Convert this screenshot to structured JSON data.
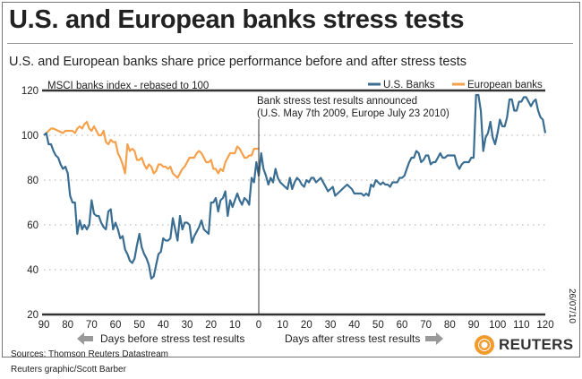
{
  "title": "U.S. and European banks stress tests",
  "subtitle": "U.S. and European banks share price performance before and after stress tests",
  "sources": "Sources: Thomson Reuters Datastream",
  "credit": "Reuters graphic/Scott Barber",
  "date_stamp": "26/07/10",
  "logo_text": "REUTERS",
  "before_label": "Days before stress test results",
  "after_label": "Days after stress test results",
  "colors": {
    "us": "#3a6d92",
    "europe": "#f5a04a",
    "grid": "#aaaaaa",
    "axis": "#333333"
  },
  "chart_data": {
    "type": "line",
    "ylabel": "MSCI banks index - rebased to 100",
    "ylim": [
      20,
      120
    ],
    "yticks": [
      "20",
      "40",
      "60",
      "80",
      "100",
      "120"
    ],
    "yticks_values": [
      20,
      40,
      60,
      80,
      100,
      120
    ],
    "xlim": [
      -90,
      120
    ],
    "xticks_values": [
      -90,
      -80,
      -70,
      -60,
      -50,
      -40,
      -30,
      -20,
      -10,
      0,
      10,
      20,
      30,
      40,
      50,
      60,
      70,
      80,
      90,
      100,
      110,
      120
    ],
    "xticks": [
      "90",
      "80",
      "70",
      "60",
      "50",
      "40",
      "30",
      "20",
      "10",
      "0",
      "10",
      "20",
      "30",
      "40",
      "50",
      "60",
      "70",
      "80",
      "90",
      "100",
      "110",
      "120"
    ],
    "grid": "horizontal dotted",
    "legend_placement": "top-right",
    "annotation": {
      "x": 0,
      "line1": "Bank stress test results announced",
      "line2": "(U.S. May 7th 2009, Europe July 23 2010)"
    },
    "series": [
      {
        "name": "U.S. Banks",
        "x_start": -90,
        "x_step": 1,
        "values": [
          100,
          101,
          96,
          96,
          93,
          91,
          90,
          87,
          85,
          86,
          83,
          73,
          70,
          70,
          56,
          62,
          58,
          60,
          58,
          60,
          71,
          65,
          64,
          64,
          61,
          59,
          58,
          66,
          67,
          58,
          61,
          58,
          54,
          55,
          49,
          47,
          44,
          43,
          45,
          51,
          56,
          50,
          47,
          45,
          42,
          36,
          37,
          42,
          47,
          48,
          54,
          53,
          53,
          54,
          63,
          58,
          53,
          64,
          58,
          61,
          61,
          60,
          52,
          55,
          57,
          59,
          62,
          58,
          57,
          56,
          70,
          70,
          72,
          66,
          71,
          72,
          75,
          64,
          71,
          68,
          71,
          74,
          71,
          69,
          72,
          71,
          69,
          81,
          79,
          88,
          82,
          92,
          85,
          82,
          78,
          81,
          79,
          85,
          81,
          79,
          78,
          77,
          76,
          81,
          76,
          79,
          81,
          80,
          78,
          77,
          80,
          79,
          81,
          81,
          79,
          80,
          81,
          79,
          77,
          75,
          76,
          77,
          73,
          74,
          75,
          76,
          77,
          78,
          77,
          76,
          74,
          74,
          74,
          74,
          73,
          74,
          73,
          78,
          77,
          80,
          79,
          78,
          79,
          78,
          78,
          77,
          79,
          79,
          79,
          81,
          81,
          82,
          85,
          88,
          90,
          90,
          93,
          92,
          88,
          89,
          91,
          91,
          87,
          88,
          88,
          90,
          92,
          90,
          90,
          91,
          91,
          91,
          91,
          87,
          85,
          87,
          88,
          88,
          88,
          90,
          90,
          118,
          118,
          111,
          93,
          99,
          101,
          106,
          99,
          96,
          101,
          107,
          104,
          104,
          108,
          116,
          116,
          111,
          111,
          115,
          115,
          117,
          117,
          115,
          113,
          115,
          116,
          111,
          108,
          107,
          101
        ]
      },
      {
        "name": "European banks",
        "x": [
          -90,
          -89,
          -87,
          -86,
          -84,
          -82,
          -81,
          -80,
          -78,
          -77,
          -76,
          -75,
          -74,
          -73,
          -72,
          -71,
          -70,
          -69,
          -68,
          -67,
          -66,
          -65,
          -64,
          -63,
          -62,
          -61,
          -60,
          -59,
          -58,
          -57,
          -56,
          -55,
          -54,
          -53,
          -52,
          -51,
          -50,
          -49,
          -48,
          -47,
          -46,
          -45,
          -44,
          -43,
          -42,
          -41,
          -40,
          -39,
          -38,
          -37,
          -36,
          -35,
          -34,
          -33,
          -32,
          -31,
          -30,
          -29,
          -28,
          -27,
          -26,
          -25,
          -24,
          -23,
          -22,
          -21,
          -20,
          -19,
          -18,
          -17,
          -16,
          -15,
          -14,
          -13,
          -12,
          -11,
          -10,
          -9,
          -8,
          -7,
          -6,
          -5,
          -4,
          -3,
          -2,
          -1,
          0
        ],
        "values": [
          100,
          101,
          103,
          103,
          102,
          101,
          102,
          102,
          102,
          101,
          103,
          104,
          103,
          105,
          106,
          103,
          102,
          104,
          102,
          100,
          100,
          102,
          97,
          96,
          98,
          97,
          97,
          92,
          90,
          87,
          83,
          96,
          93,
          94,
          93,
          89,
          89,
          90,
          87,
          85,
          87,
          86,
          83,
          84,
          87,
          87,
          86,
          86,
          85,
          86,
          83,
          82,
          81,
          83,
          85,
          86,
          88,
          90,
          90,
          90,
          92,
          93,
          92,
          90,
          88,
          88,
          89,
          85,
          85,
          83,
          85,
          84,
          88,
          90,
          92,
          92,
          92,
          95,
          94,
          92,
          90,
          90,
          91,
          91,
          94,
          94,
          94
        ]
      }
    ]
  }
}
